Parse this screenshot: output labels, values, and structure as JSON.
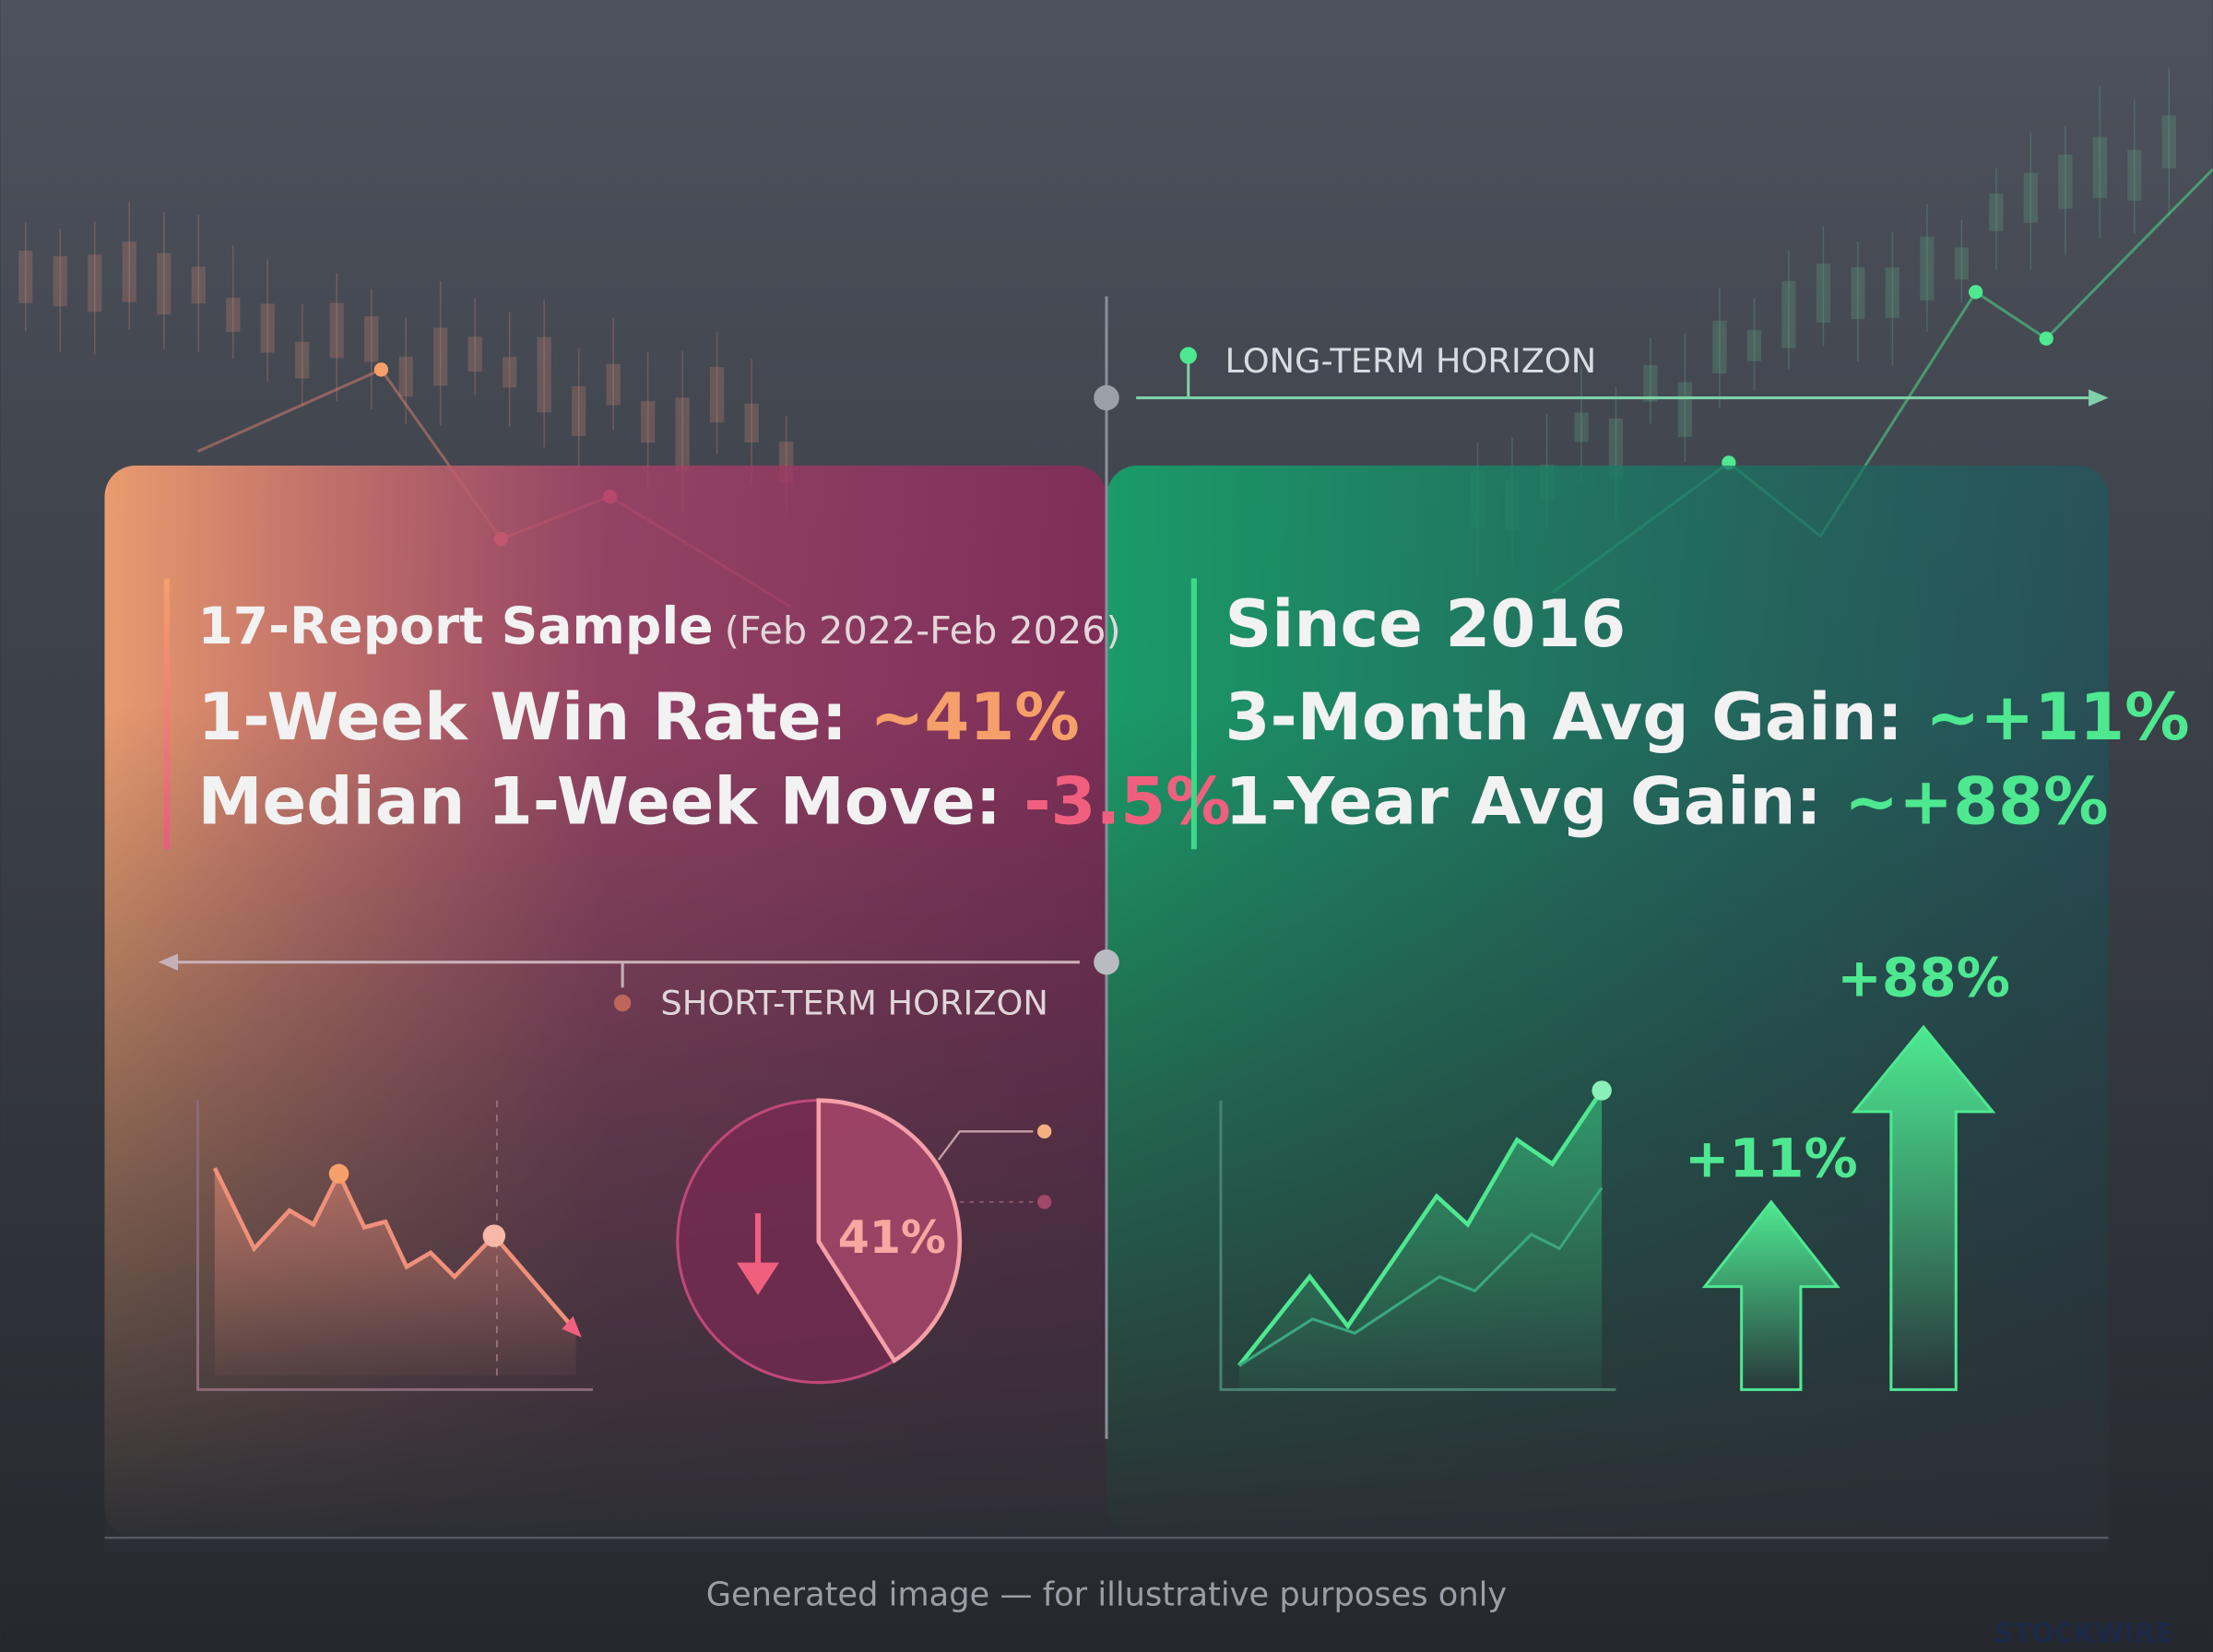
{
  "long_term": {
    "label": "LONG-TERM HORIZON"
  },
  "short_term": {
    "label": "SHORT-TERM HORIZON"
  },
  "left_panel": {
    "title": "17-Report Sample",
    "period": "(Feb 2022-Feb 2026)",
    "win_rate_label": "1-Week Win Rate: ",
    "win_rate_value": "~41%",
    "median_label": "Median 1-Week Move: ",
    "median_value": "-3.5%",
    "pie": {
      "value": 41,
      "label": "41%"
    }
  },
  "right_panel": {
    "title": "Since 2016",
    "three_month_label": "3-Month Avg Gain: ",
    "three_month_value": "~+11%",
    "one_year_label": "1-Year Avg Gain: ",
    "one_year_value": "~+88%",
    "arrow_small_label": "+11%",
    "arrow_big_label": "+88%"
  },
  "footer": {
    "note": "Generated image — for illustrative purposes only",
    "brand": "STOCKWIRE"
  }
}
